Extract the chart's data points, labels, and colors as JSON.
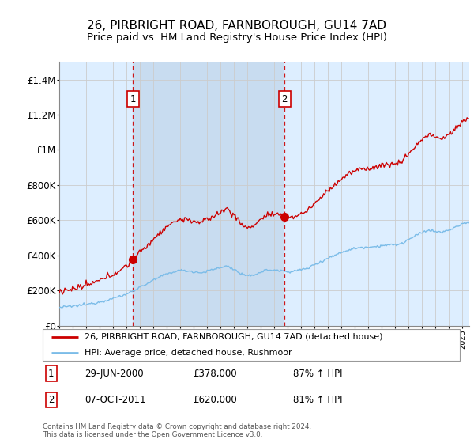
{
  "title": "26, PIRBRIGHT ROAD, FARNBOROUGH, GU14 7AD",
  "subtitle": "Price paid vs. HM Land Registry's House Price Index (HPI)",
  "ylim": [
    0,
    1500000
  ],
  "yticks": [
    0,
    200000,
    400000,
    600000,
    800000,
    1000000,
    1200000,
    1400000
  ],
  "ytick_labels": [
    "£0",
    "£200K",
    "£400K",
    "£600K",
    "£800K",
    "£1M",
    "£1.2M",
    "£1.4M"
  ],
  "sale1_date": 2000.49,
  "sale1_price": 378000,
  "sale2_date": 2011.77,
  "sale2_price": 620000,
  "hpi_color": "#7bbce8",
  "price_color": "#cc0000",
  "grid_color": "#cccccc",
  "background_color": "#ddeeff",
  "shade_color": "#c8dcf0",
  "legend1": "26, PIRBRIGHT ROAD, FARNBOROUGH, GU14 7AD (detached house)",
  "legend2": "HPI: Average price, detached house, Rushmoor",
  "ann1_date": "29-JUN-2000",
  "ann1_price": "£378,000",
  "ann1_hpi": "87% ↑ HPI",
  "ann2_date": "07-OCT-2011",
  "ann2_price": "£620,000",
  "ann2_hpi": "81% ↑ HPI",
  "footer": "Contains HM Land Registry data © Crown copyright and database right 2024.\nThis data is licensed under the Open Government Licence v3.0.",
  "title_fontsize": 11,
  "subtitle_fontsize": 9.5,
  "xmin": 1995,
  "xmax": 2025.5
}
